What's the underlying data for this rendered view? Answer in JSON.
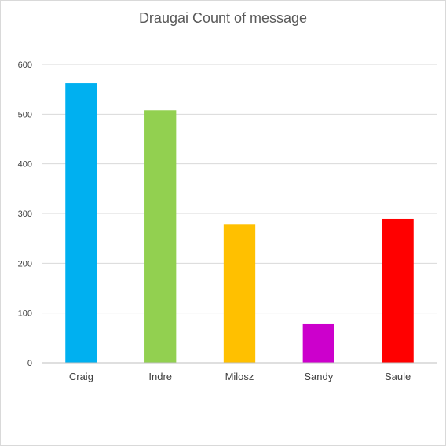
{
  "chart_data": {
    "type": "bar",
    "title": "Draugai Count of message",
    "xlabel": "",
    "ylabel": "",
    "categories": [
      "Craig",
      "Indre",
      "Milosz",
      "Sandy",
      "Saule"
    ],
    "values": [
      562,
      508,
      279,
      79,
      289
    ],
    "colors": [
      "#00b0f0",
      "#92d050",
      "#ffc000",
      "#cc00cc",
      "#ff0000"
    ],
    "ylim": [
      0,
      600
    ],
    "yticks": [
      "0",
      "100",
      "200",
      "300",
      "400",
      "500",
      "600"
    ],
    "grid": true,
    "legend": "none"
  }
}
